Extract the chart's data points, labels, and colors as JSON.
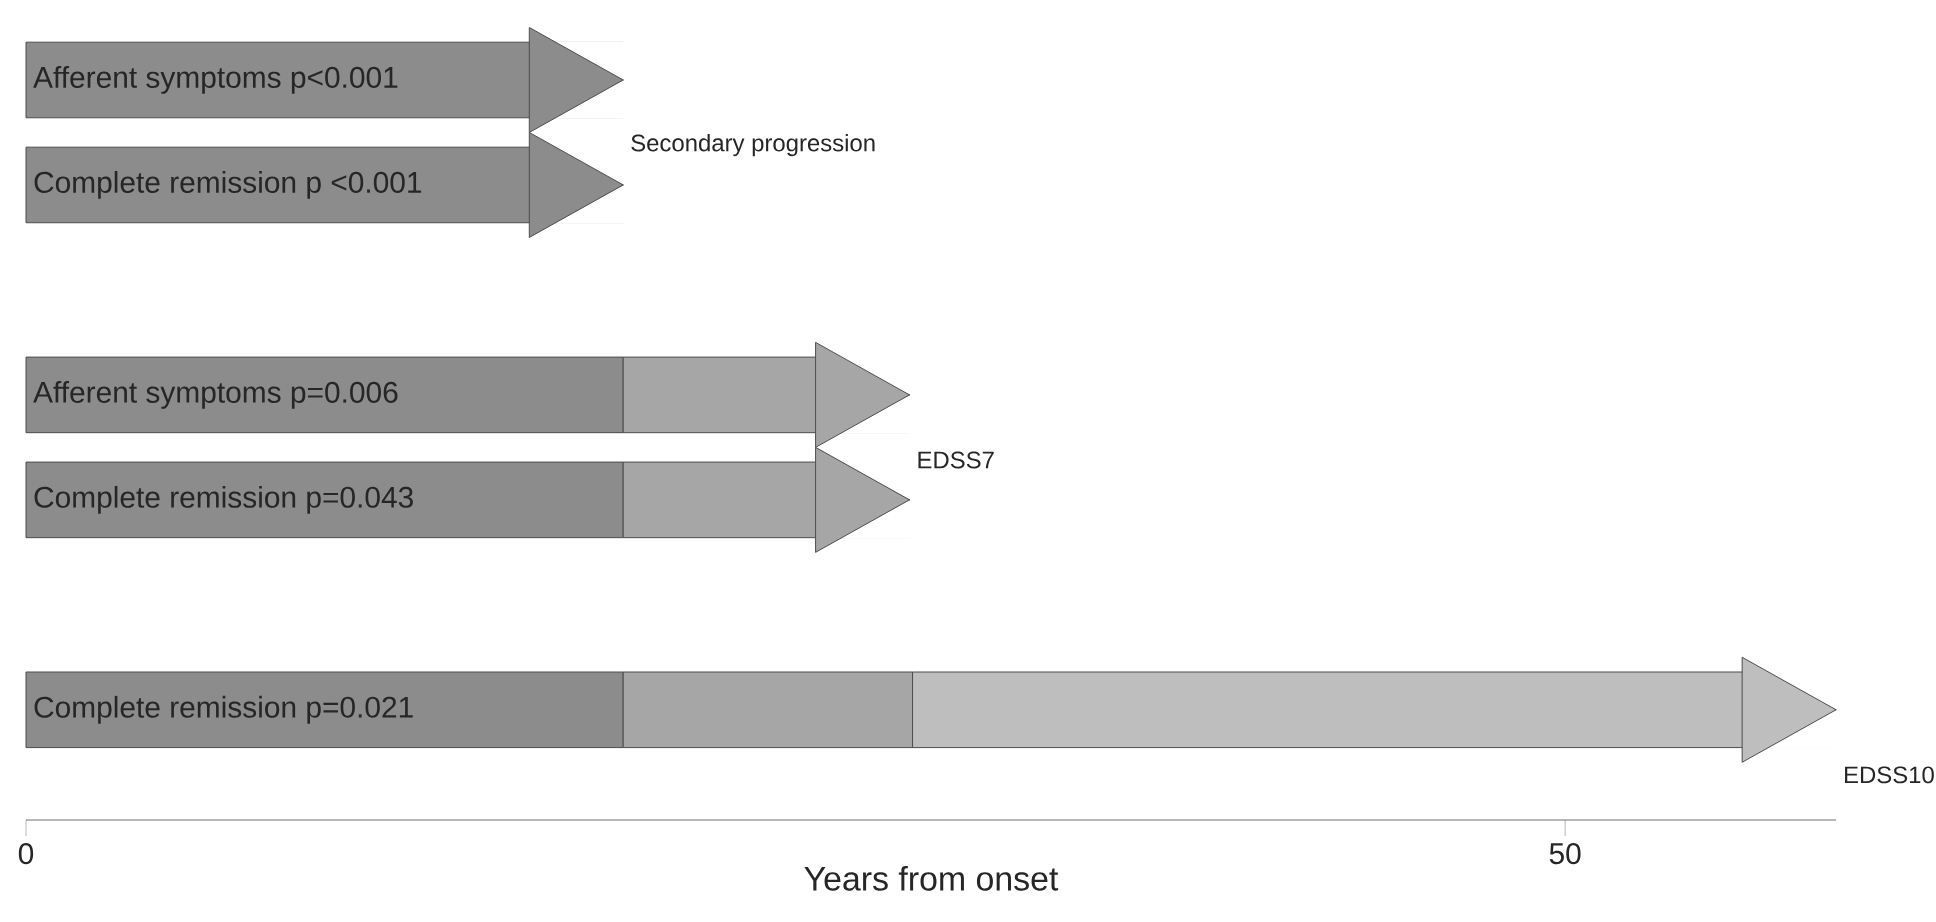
{
  "chart_data": {
    "type": "bar",
    "orientation": "horizontal",
    "stacked": true,
    "categories": [
      "Afferent symptoms p<0.001",
      "Complete remission p <0.001",
      null,
      "Afferent symptoms p=0.006",
      "Complete remission p=0.043",
      null,
      "Complete remission p=0.021"
    ],
    "series": [
      {
        "color": "#8c8c8c",
        "values": [
          19.4,
          19.4,
          null,
          19.4,
          19.4,
          null,
          19.4
        ]
      },
      {
        "color": "#a6a6a6",
        "values": [
          null,
          null,
          null,
          9.3,
          9.3,
          null,
          9.4
        ]
      },
      {
        "color": "#bebebe",
        "values": [
          null,
          null,
          null,
          null,
          null,
          null,
          30.0
        ]
      }
    ],
    "xlabel": "Years from onset",
    "xlim": [
      0,
      58.8
    ],
    "xticks": [
      0,
      50
    ],
    "annotations": [
      "Secondary progression",
      "EDSS7",
      "EDSS10"
    ]
  }
}
